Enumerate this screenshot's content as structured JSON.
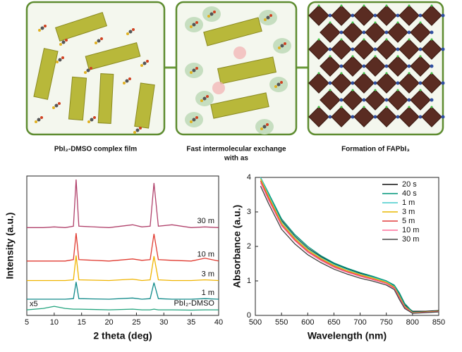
{
  "panels": [
    {
      "caption": [
        "PbI₂-DMSO complex film"
      ]
    },
    {
      "caption": [
        "Fast intermolecular exchange",
        "with as"
      ]
    },
    {
      "caption": [
        "Formation of FAPbI₃"
      ]
    }
  ],
  "chart_data": [
    {
      "type": "line",
      "xlabel": "2 theta (deg)",
      "ylabel": "Intensity (a.u.)",
      "xlim": [
        5,
        40
      ],
      "xticks": [
        5,
        10,
        15,
        20,
        25,
        30,
        35,
        40
      ],
      "ylim": [
        0,
        10
      ],
      "annotation": "x5",
      "x": [
        5,
        8,
        10,
        12,
        13.5,
        14,
        14.5,
        20,
        24.3,
        26,
        27.5,
        28.2,
        29,
        31.5,
        35,
        37.5,
        40
      ],
      "series": [
        {
          "name": "30 m",
          "color": "#b0406a",
          "values": [
            6.3,
            6.3,
            6.35,
            6.3,
            6.4,
            9.75,
            6.4,
            6.3,
            6.5,
            6.35,
            6.4,
            9.5,
            6.4,
            6.5,
            6.3,
            6.35,
            6.3
          ]
        },
        {
          "name": "10 m",
          "color": "#e03a30",
          "values": [
            3.9,
            3.9,
            3.9,
            3.9,
            4.0,
            5.9,
            4.0,
            3.9,
            4.05,
            3.95,
            4.0,
            5.85,
            4.0,
            3.95,
            3.9,
            4.1,
            3.9
          ]
        },
        {
          "name": "3 m",
          "color": "#f0b400",
          "values": [
            2.5,
            2.5,
            2.5,
            2.5,
            2.55,
            4.3,
            2.55,
            2.5,
            2.6,
            2.5,
            2.55,
            4.25,
            2.55,
            2.5,
            2.5,
            2.55,
            2.5
          ]
        },
        {
          "name": "1 m",
          "color": "#108a8a",
          "values": [
            1.16,
            1.16,
            1.16,
            1.16,
            1.2,
            2.4,
            1.2,
            1.16,
            1.25,
            1.16,
            1.2,
            2.35,
            1.2,
            1.16,
            1.16,
            1.2,
            1.16
          ]
        },
        {
          "name": "PbI₂-DMSO",
          "color": "#20a37c",
          "values": [
            0.4,
            0.5,
            0.65,
            0.5,
            0.45,
            0.45,
            0.45,
            0.4,
            0.45,
            0.4,
            0.4,
            0.45,
            0.4,
            0.4,
            0.38,
            0.4,
            0.4
          ]
        }
      ]
    },
    {
      "type": "line",
      "xlabel": "Wavelength (nm)",
      "ylabel": "Absorbance (a.u.)",
      "xlim": [
        500,
        850
      ],
      "xticks": [
        500,
        550,
        600,
        650,
        700,
        750,
        800,
        850
      ],
      "ylim": [
        0,
        4
      ],
      "yticks": [
        0,
        1,
        2,
        3,
        4
      ],
      "legend": "upper right",
      "x": [
        510,
        525,
        550,
        575,
        600,
        625,
        650,
        675,
        700,
        725,
        750,
        765,
        775,
        785,
        800,
        825,
        850
      ],
      "series": [
        {
          "name": "20 s",
          "color": "#111111",
          "values": [
            4.0,
            3.5,
            2.75,
            2.3,
            1.95,
            1.7,
            1.5,
            1.35,
            1.22,
            1.12,
            1.0,
            0.85,
            0.6,
            0.3,
            0.12,
            0.12,
            0.14
          ]
        },
        {
          "name": "40 s",
          "color": "#00957a",
          "values": [
            4.0,
            3.55,
            2.8,
            2.35,
            2.0,
            1.73,
            1.52,
            1.37,
            1.24,
            1.13,
            1.0,
            0.88,
            0.65,
            0.35,
            0.1,
            0.1,
            0.12
          ]
        },
        {
          "name": "1 m",
          "color": "#44cccc",
          "values": [
            4.0,
            3.5,
            2.72,
            2.28,
            1.93,
            1.68,
            1.48,
            1.33,
            1.2,
            1.1,
            0.98,
            0.84,
            0.58,
            0.28,
            0.08,
            0.1,
            0.12
          ]
        },
        {
          "name": "3 m",
          "color": "#e8b800",
          "values": [
            3.95,
            3.45,
            2.68,
            2.24,
            1.9,
            1.65,
            1.45,
            1.3,
            1.18,
            1.08,
            0.96,
            0.82,
            0.55,
            0.26,
            0.08,
            0.1,
            0.12
          ]
        },
        {
          "name": "5 m",
          "color": "#e03c3c",
          "values": [
            3.9,
            3.4,
            2.63,
            2.2,
            1.86,
            1.62,
            1.42,
            1.27,
            1.15,
            1.05,
            0.93,
            0.8,
            0.52,
            0.24,
            0.07,
            0.09,
            0.11
          ]
        },
        {
          "name": "10 m",
          "color": "#ff6f9a",
          "values": [
            3.85,
            3.35,
            2.6,
            2.17,
            1.83,
            1.59,
            1.39,
            1.25,
            1.13,
            1.03,
            0.92,
            0.78,
            0.5,
            0.22,
            0.07,
            0.09,
            0.11
          ]
        },
        {
          "name": "30 m",
          "color": "#444444",
          "values": [
            3.75,
            3.25,
            2.5,
            2.08,
            1.76,
            1.53,
            1.34,
            1.2,
            1.08,
            0.99,
            0.88,
            0.75,
            0.46,
            0.2,
            0.06,
            0.08,
            0.1
          ]
        }
      ]
    }
  ]
}
